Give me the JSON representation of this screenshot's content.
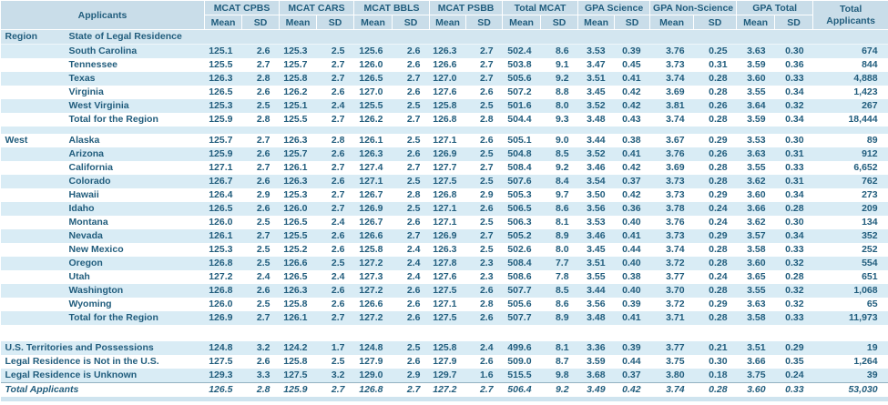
{
  "table": {
    "header": {
      "applicants_label": "Applicants",
      "sub": [
        "Mean",
        "SD"
      ],
      "groups": [
        {
          "label": "MCAT CPBS"
        },
        {
          "label": "MCAT CARS"
        },
        {
          "label": "MCAT BBLS"
        },
        {
          "label": "MCAT PSBB"
        },
        {
          "label": "Total MCAT"
        },
        {
          "label": "GPA Science"
        },
        {
          "label": "GPA Non-Science"
        },
        {
          "label": "GPA Total"
        }
      ],
      "total_label": "Total",
      "total_sub": "Applicants"
    },
    "rows": [
      {
        "type": "section",
        "region": "Region",
        "label": "State of Legal Residence",
        "shaded": true
      },
      {
        "type": "data",
        "region": "",
        "label": "South Carolina",
        "shaded": true,
        "values": [
          "125.1",
          "2.6",
          "125.3",
          "2.5",
          "125.6",
          "2.6",
          "126.3",
          "2.7",
          "502.4",
          "8.6",
          "3.53",
          "0.39",
          "3.76",
          "0.25",
          "3.63",
          "0.30",
          "674"
        ]
      },
      {
        "type": "data",
        "region": "",
        "label": "Tennessee",
        "shaded": false,
        "values": [
          "125.5",
          "2.7",
          "125.7",
          "2.7",
          "126.0",
          "2.6",
          "126.6",
          "2.7",
          "503.8",
          "9.1",
          "3.47",
          "0.45",
          "3.73",
          "0.31",
          "3.59",
          "0.36",
          "844"
        ]
      },
      {
        "type": "data",
        "region": "",
        "label": "Texas",
        "shaded": true,
        "values": [
          "126.3",
          "2.8",
          "125.8",
          "2.7",
          "126.5",
          "2.7",
          "127.0",
          "2.7",
          "505.6",
          "9.2",
          "3.51",
          "0.41",
          "3.74",
          "0.28",
          "3.60",
          "0.33",
          "4,888"
        ]
      },
      {
        "type": "data",
        "region": "",
        "label": "Virginia",
        "shaded": false,
        "values": [
          "126.5",
          "2.6",
          "126.2",
          "2.6",
          "127.0",
          "2.6",
          "127.6",
          "2.6",
          "507.2",
          "8.8",
          "3.45",
          "0.42",
          "3.69",
          "0.28",
          "3.55",
          "0.34",
          "1,423"
        ]
      },
      {
        "type": "data",
        "region": "",
        "label": "West Virginia",
        "shaded": true,
        "values": [
          "125.3",
          "2.5",
          "125.1",
          "2.4",
          "125.5",
          "2.5",
          "125.8",
          "2.5",
          "501.6",
          "8.0",
          "3.52",
          "0.42",
          "3.81",
          "0.26",
          "3.64",
          "0.32",
          "267"
        ]
      },
      {
        "type": "data",
        "region": "",
        "label": "Total for the Region",
        "shaded": false,
        "values": [
          "125.9",
          "2.8",
          "125.5",
          "2.7",
          "126.2",
          "2.7",
          "126.8",
          "2.8",
          "504.4",
          "9.3",
          "3.48",
          "0.43",
          "3.74",
          "0.28",
          "3.59",
          "0.34",
          "18,444"
        ]
      },
      {
        "type": "spacer-blue"
      },
      {
        "type": "data",
        "region": "West",
        "label": "Alaska",
        "shaded": false,
        "values": [
          "125.7",
          "2.7",
          "126.3",
          "2.8",
          "126.1",
          "2.5",
          "127.1",
          "2.6",
          "505.1",
          "9.0",
          "3.44",
          "0.38",
          "3.67",
          "0.29",
          "3.53",
          "0.30",
          "89"
        ]
      },
      {
        "type": "data",
        "region": "",
        "label": "Arizona",
        "shaded": true,
        "values": [
          "125.9",
          "2.6",
          "125.7",
          "2.6",
          "126.3",
          "2.6",
          "126.9",
          "2.5",
          "504.8",
          "8.5",
          "3.52",
          "0.41",
          "3.76",
          "0.26",
          "3.63",
          "0.31",
          "912"
        ]
      },
      {
        "type": "data",
        "region": "",
        "label": "California",
        "shaded": false,
        "values": [
          "127.1",
          "2.7",
          "126.1",
          "2.7",
          "127.4",
          "2.7",
          "127.7",
          "2.7",
          "508.4",
          "9.2",
          "3.46",
          "0.42",
          "3.69",
          "0.28",
          "3.55",
          "0.33",
          "6,652"
        ]
      },
      {
        "type": "data",
        "region": "",
        "label": "Colorado",
        "shaded": true,
        "values": [
          "126.7",
          "2.6",
          "126.3",
          "2.6",
          "127.1",
          "2.5",
          "127.5",
          "2.5",
          "507.6",
          "8.4",
          "3.54",
          "0.37",
          "3.73",
          "0.28",
          "3.62",
          "0.31",
          "762"
        ]
      },
      {
        "type": "data",
        "region": "",
        "label": "Hawaii",
        "shaded": false,
        "values": [
          "126.4",
          "2.9",
          "125.3",
          "2.7",
          "126.7",
          "2.8",
          "126.8",
          "2.9",
          "505.3",
          "9.7",
          "3.50",
          "0.42",
          "3.73",
          "0.29",
          "3.60",
          "0.34",
          "273"
        ]
      },
      {
        "type": "data",
        "region": "",
        "label": "Idaho",
        "shaded": true,
        "values": [
          "126.5",
          "2.6",
          "126.0",
          "2.7",
          "126.9",
          "2.5",
          "127.1",
          "2.6",
          "506.5",
          "8.6",
          "3.56",
          "0.36",
          "3.78",
          "0.24",
          "3.66",
          "0.28",
          "209"
        ]
      },
      {
        "type": "data",
        "region": "",
        "label": "Montana",
        "shaded": false,
        "values": [
          "126.0",
          "2.5",
          "126.5",
          "2.4",
          "126.7",
          "2.6",
          "127.1",
          "2.5",
          "506.3",
          "8.1",
          "3.53",
          "0.40",
          "3.76",
          "0.24",
          "3.62",
          "0.30",
          "134"
        ]
      },
      {
        "type": "data",
        "region": "",
        "label": "Nevada",
        "shaded": true,
        "values": [
          "126.1",
          "2.7",
          "125.5",
          "2.6",
          "126.6",
          "2.7",
          "126.9",
          "2.7",
          "505.2",
          "8.9",
          "3.46",
          "0.41",
          "3.73",
          "0.29",
          "3.57",
          "0.34",
          "352"
        ]
      },
      {
        "type": "data",
        "region": "",
        "label": "New Mexico",
        "shaded": false,
        "values": [
          "125.3",
          "2.5",
          "125.2",
          "2.6",
          "125.8",
          "2.4",
          "126.3",
          "2.5",
          "502.6",
          "8.0",
          "3.45",
          "0.44",
          "3.74",
          "0.28",
          "3.58",
          "0.33",
          "252"
        ]
      },
      {
        "type": "data",
        "region": "",
        "label": "Oregon",
        "shaded": true,
        "values": [
          "126.8",
          "2.5",
          "126.6",
          "2.5",
          "127.2",
          "2.4",
          "127.8",
          "2.3",
          "508.4",
          "7.7",
          "3.51",
          "0.40",
          "3.72",
          "0.28",
          "3.60",
          "0.32",
          "554"
        ]
      },
      {
        "type": "data",
        "region": "",
        "label": "Utah",
        "shaded": false,
        "values": [
          "127.2",
          "2.4",
          "126.5",
          "2.4",
          "127.3",
          "2.4",
          "127.6",
          "2.3",
          "508.6",
          "7.8",
          "3.55",
          "0.38",
          "3.77",
          "0.24",
          "3.65",
          "0.28",
          "651"
        ]
      },
      {
        "type": "data",
        "region": "",
        "label": "Washington",
        "shaded": true,
        "values": [
          "126.8",
          "2.6",
          "126.3",
          "2.6",
          "127.2",
          "2.6",
          "127.5",
          "2.6",
          "507.7",
          "8.5",
          "3.44",
          "0.40",
          "3.70",
          "0.28",
          "3.55",
          "0.32",
          "1,068"
        ]
      },
      {
        "type": "data",
        "region": "",
        "label": "Wyoming",
        "shaded": false,
        "values": [
          "126.0",
          "2.5",
          "125.8",
          "2.6",
          "126.6",
          "2.6",
          "127.1",
          "2.8",
          "505.6",
          "8.6",
          "3.56",
          "0.39",
          "3.72",
          "0.29",
          "3.63",
          "0.32",
          "65"
        ]
      },
      {
        "type": "data",
        "region": "",
        "label": "Total for the Region",
        "shaded": true,
        "values": [
          "126.9",
          "2.7",
          "126.1",
          "2.7",
          "127.2",
          "2.6",
          "127.5",
          "2.6",
          "507.7",
          "8.9",
          "3.48",
          "0.41",
          "3.71",
          "0.28",
          "3.58",
          "0.33",
          "11,973"
        ]
      },
      {
        "type": "spacer-white"
      },
      {
        "type": "footer",
        "label": "U.S. Territories and Possessions",
        "shaded": true,
        "values": [
          "124.8",
          "3.2",
          "124.2",
          "1.7",
          "124.8",
          "2.5",
          "125.8",
          "2.4",
          "499.6",
          "8.1",
          "3.36",
          "0.39",
          "3.77",
          "0.21",
          "3.51",
          "0.29",
          "19"
        ]
      },
      {
        "type": "footer",
        "label": "Legal Residence is Not in the U.S.",
        "shaded": false,
        "values": [
          "127.5",
          "2.6",
          "125.8",
          "2.5",
          "127.9",
          "2.6",
          "127.9",
          "2.6",
          "509.0",
          "8.7",
          "3.59",
          "0.44",
          "3.75",
          "0.30",
          "3.66",
          "0.35",
          "1,264"
        ]
      },
      {
        "type": "footer",
        "label": "Legal Residence is Unknown",
        "shaded": true,
        "values": [
          "129.3",
          "3.3",
          "127.5",
          "3.2",
          "129.0",
          "2.9",
          "129.7",
          "1.6",
          "515.5",
          "9.8",
          "3.68",
          "0.37",
          "3.80",
          "0.18",
          "3.75",
          "0.24",
          "39"
        ]
      },
      {
        "type": "grand",
        "label": "Total Applicants",
        "shaded": false,
        "values": [
          "126.5",
          "2.8",
          "125.9",
          "2.7",
          "126.8",
          "2.7",
          "127.2",
          "2.7",
          "506.4",
          "9.2",
          "3.49",
          "0.42",
          "3.74",
          "0.28",
          "3.60",
          "0.33",
          "53,030"
        ]
      }
    ],
    "colors": {
      "header_bg": "#c9dde9",
      "stripe_bg": "#d9ecf5",
      "section_bg": "#d3e6f0",
      "text": "#215d7d"
    }
  }
}
